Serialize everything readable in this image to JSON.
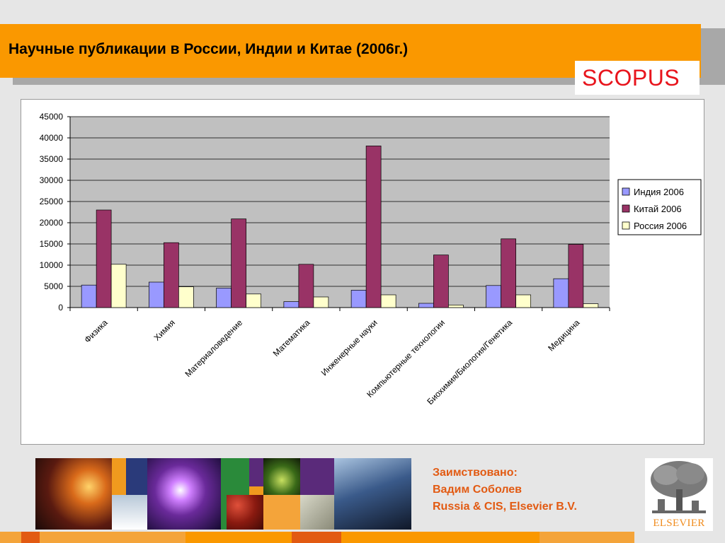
{
  "slide": {
    "title": "Научные публикации в России, Индии и Китае (2006г.)",
    "badge": "SCOPUS"
  },
  "credit": {
    "line1": "Заимствовано:",
    "line2": "Вадим Соболев",
    "line3": "Russia & CIS, Elsevier B.V."
  },
  "logo": {
    "word": "ELSEVIER"
  },
  "colors": {
    "header": "#fa9800",
    "scopus_text": "#e8141c",
    "credit_text": "#e25a12",
    "plot_bg": "#c0c0c0"
  },
  "chart_data": {
    "type": "bar",
    "title": "",
    "xlabel": "",
    "ylabel": "",
    "categories": [
      "Физика",
      "Химия",
      "Материаловедение",
      "Математика",
      "Инженерные науки",
      "Компьютерные технологии",
      "Биохимия/Биология/Генетика",
      "Медицина"
    ],
    "series": [
      {
        "name": "Индия 2006",
        "color": "#9999ff",
        "values": [
          5300,
          6000,
          4600,
          1400,
          4100,
          1000,
          5200,
          6800
        ]
      },
      {
        "name": "Китай 2006",
        "color": "#993366",
        "values": [
          23000,
          15300,
          20900,
          10200,
          38100,
          12400,
          16200,
          14900
        ]
      },
      {
        "name": "Россия 2006",
        "color": "#ffffcc",
        "values": [
          10200,
          4900,
          3200,
          2500,
          3000,
          600,
          3000,
          900
        ]
      }
    ],
    "ylim": [
      0,
      45000
    ],
    "yticks": [
      0,
      5000,
      10000,
      15000,
      20000,
      25000,
      30000,
      35000,
      40000,
      45000
    ],
    "grid": true,
    "legend_position": "right"
  }
}
